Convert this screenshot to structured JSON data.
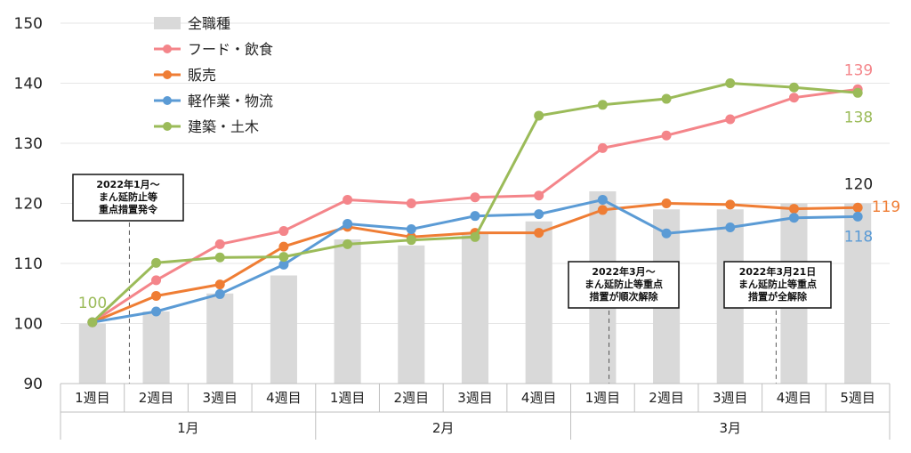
{
  "chart_data": {
    "type": "bar+line",
    "ylim": [
      90,
      150
    ],
    "yticks": [
      "90",
      "100",
      "110",
      "120",
      "130",
      "140",
      "150"
    ],
    "categories": [
      "1週目",
      "2週目",
      "3週目",
      "4週目",
      "1週目",
      "2週目",
      "3週目",
      "4週目",
      "1週目",
      "2週目",
      "3週目",
      "4週目",
      "5週目"
    ],
    "groups": [
      {
        "label": "1月",
        "count": 4
      },
      {
        "label": "2月",
        "count": 4
      },
      {
        "label": "3月",
        "count": 5
      }
    ],
    "legend_position": "top-left",
    "bars": {
      "name": "全職種",
      "color": "#d9d9d9",
      "values": [
        100,
        102,
        105,
        108,
        114,
        113,
        115,
        117,
        122,
        119,
        119,
        120,
        120
      ]
    },
    "series": [
      {
        "name": "フード・飲食",
        "color": "#f4858a",
        "values": [
          100.2,
          107.2,
          113.2,
          115.4,
          120.6,
          120.0,
          121.0,
          121.3,
          129.2,
          131.3,
          134.0,
          137.6,
          139.0
        ]
      },
      {
        "name": "販売",
        "color": "#ef7d34",
        "values": [
          100.2,
          104.6,
          106.5,
          112.8,
          116.1,
          114.4,
          115.1,
          115.1,
          118.9,
          120.0,
          119.8,
          119.1,
          119.3
        ]
      },
      {
        "name": "軽作業・物流",
        "color": "#5b9bd5",
        "values": [
          100.2,
          102.0,
          104.9,
          109.8,
          116.6,
          115.7,
          117.9,
          118.2,
          120.6,
          115.0,
          116.0,
          117.6,
          117.8
        ]
      },
      {
        "name": "建築・土木",
        "color": "#9bbb59",
        "values": [
          100.2,
          110.1,
          111.0,
          111.1,
          113.2,
          113.9,
          114.4,
          134.6,
          136.4,
          137.4,
          140.0,
          139.3,
          138.4
        ]
      }
    ],
    "point_labels": [
      {
        "text": "100",
        "color": "#9bbb59"
      },
      {
        "text": "139",
        "color": "#f4858a"
      },
      {
        "text": "138",
        "color": "#9bbb59"
      },
      {
        "text": "120",
        "color": "#222222"
      },
      {
        "text": "119",
        "color": "#ef7d34"
      },
      {
        "text": "118",
        "color": "#5b9bd5"
      }
    ],
    "annotations": [
      {
        "lines": [
          "2022年1月～",
          "まん延防止等",
          "重点措置発令"
        ]
      },
      {
        "lines": [
          "2022年3月～",
          "まん延防止等重点",
          "措置が順次解除"
        ]
      },
      {
        "lines": [
          "2022年3月21日",
          "まん延防止等重点",
          "措置が全解除"
        ]
      }
    ]
  }
}
